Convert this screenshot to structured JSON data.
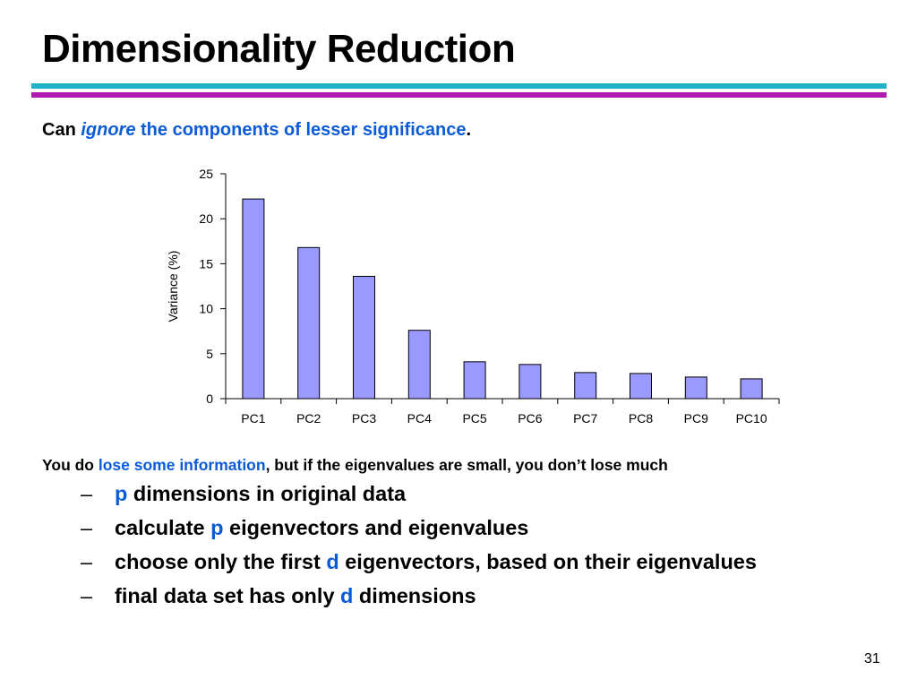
{
  "slide": {
    "title": "Dimensionality Reduction",
    "subtitle": {
      "part1": "Can ",
      "part2": "ignore",
      "part3": " the components of lesser significance",
      "part4": "."
    },
    "note": {
      "part1": "You do ",
      "part2": "lose some information",
      "part3": ", but if the eigenvalues are small, you don’t lose much"
    },
    "bullets": [
      {
        "dash": "–",
        "segments": [
          {
            "text": "p",
            "blue": true
          },
          {
            "text": " dimensions in original data",
            "blue": false
          }
        ]
      },
      {
        "dash": "–",
        "segments": [
          {
            "text": "calculate ",
            "blue": false
          },
          {
            "text": "p",
            "blue": true
          },
          {
            "text": " eigenvectors and eigenvalues",
            "blue": false
          }
        ]
      },
      {
        "dash": "–",
        "segments": [
          {
            "text": "choose only the first ",
            "blue": false
          },
          {
            "text": "d",
            "blue": true
          },
          {
            "text": " eigenvectors, based on their eigenvalues",
            "blue": false
          }
        ]
      },
      {
        "dash": "–",
        "segments": [
          {
            "text": "final data set has only ",
            "blue": false
          },
          {
            "text": "d",
            "blue": true
          },
          {
            "text": " dimensions",
            "blue": false
          }
        ]
      }
    ],
    "page_number": "31"
  },
  "colors": {
    "accent_blue": "#0b5bd7",
    "rule_teal": "#1fb2c4",
    "rule_magenta": "#b01ab0",
    "bar_fill": "#9999ff",
    "bar_stroke": "#000000"
  },
  "chart_data": {
    "type": "bar",
    "categories": [
      "PC1",
      "PC2",
      "PC3",
      "PC4",
      "PC5",
      "PC6",
      "PC7",
      "PC8",
      "PC9",
      "PC10"
    ],
    "values": [
      22.2,
      16.8,
      13.6,
      7.6,
      4.1,
      3.8,
      2.9,
      2.8,
      2.4,
      2.2
    ],
    "ylabel": "Variance (%)",
    "ylim": [
      0,
      25
    ],
    "yticks": [
      0,
      5,
      10,
      15,
      20,
      25
    ],
    "grid": false,
    "legend": false
  }
}
